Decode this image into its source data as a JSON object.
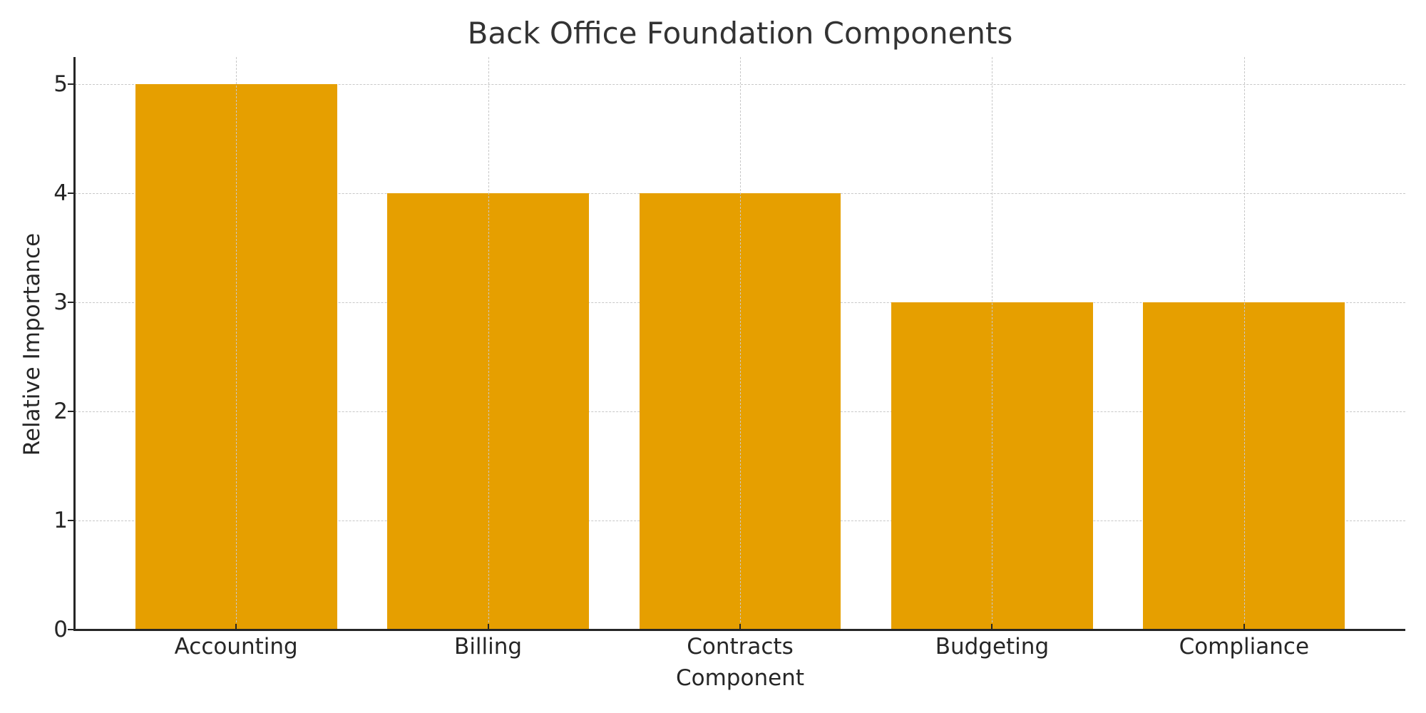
{
  "chart_data": {
    "type": "bar",
    "title": "Back Office Foundation Components",
    "xlabel": "Component",
    "ylabel": "Relative Importance",
    "categories": [
      "Accounting",
      "Billing",
      "Contracts",
      "Budgeting",
      "Compliance"
    ],
    "values": [
      5,
      4,
      4,
      3,
      3
    ],
    "ylim": [
      0,
      5.25
    ],
    "yticks": [
      0,
      1,
      2,
      3,
      4,
      5
    ],
    "grid": true,
    "grid_style": "dashed",
    "bar_color": "#E69F00",
    "legend": null
  },
  "labels": {
    "title": "Back Office Foundation Components",
    "xlabel": "Component",
    "ylabel": "Relative Importance",
    "yticks": [
      "0",
      "1",
      "2",
      "3",
      "4",
      "5"
    ],
    "xticks": [
      "Accounting",
      "Billing",
      "Contracts",
      "Budgeting",
      "Compliance"
    ]
  }
}
